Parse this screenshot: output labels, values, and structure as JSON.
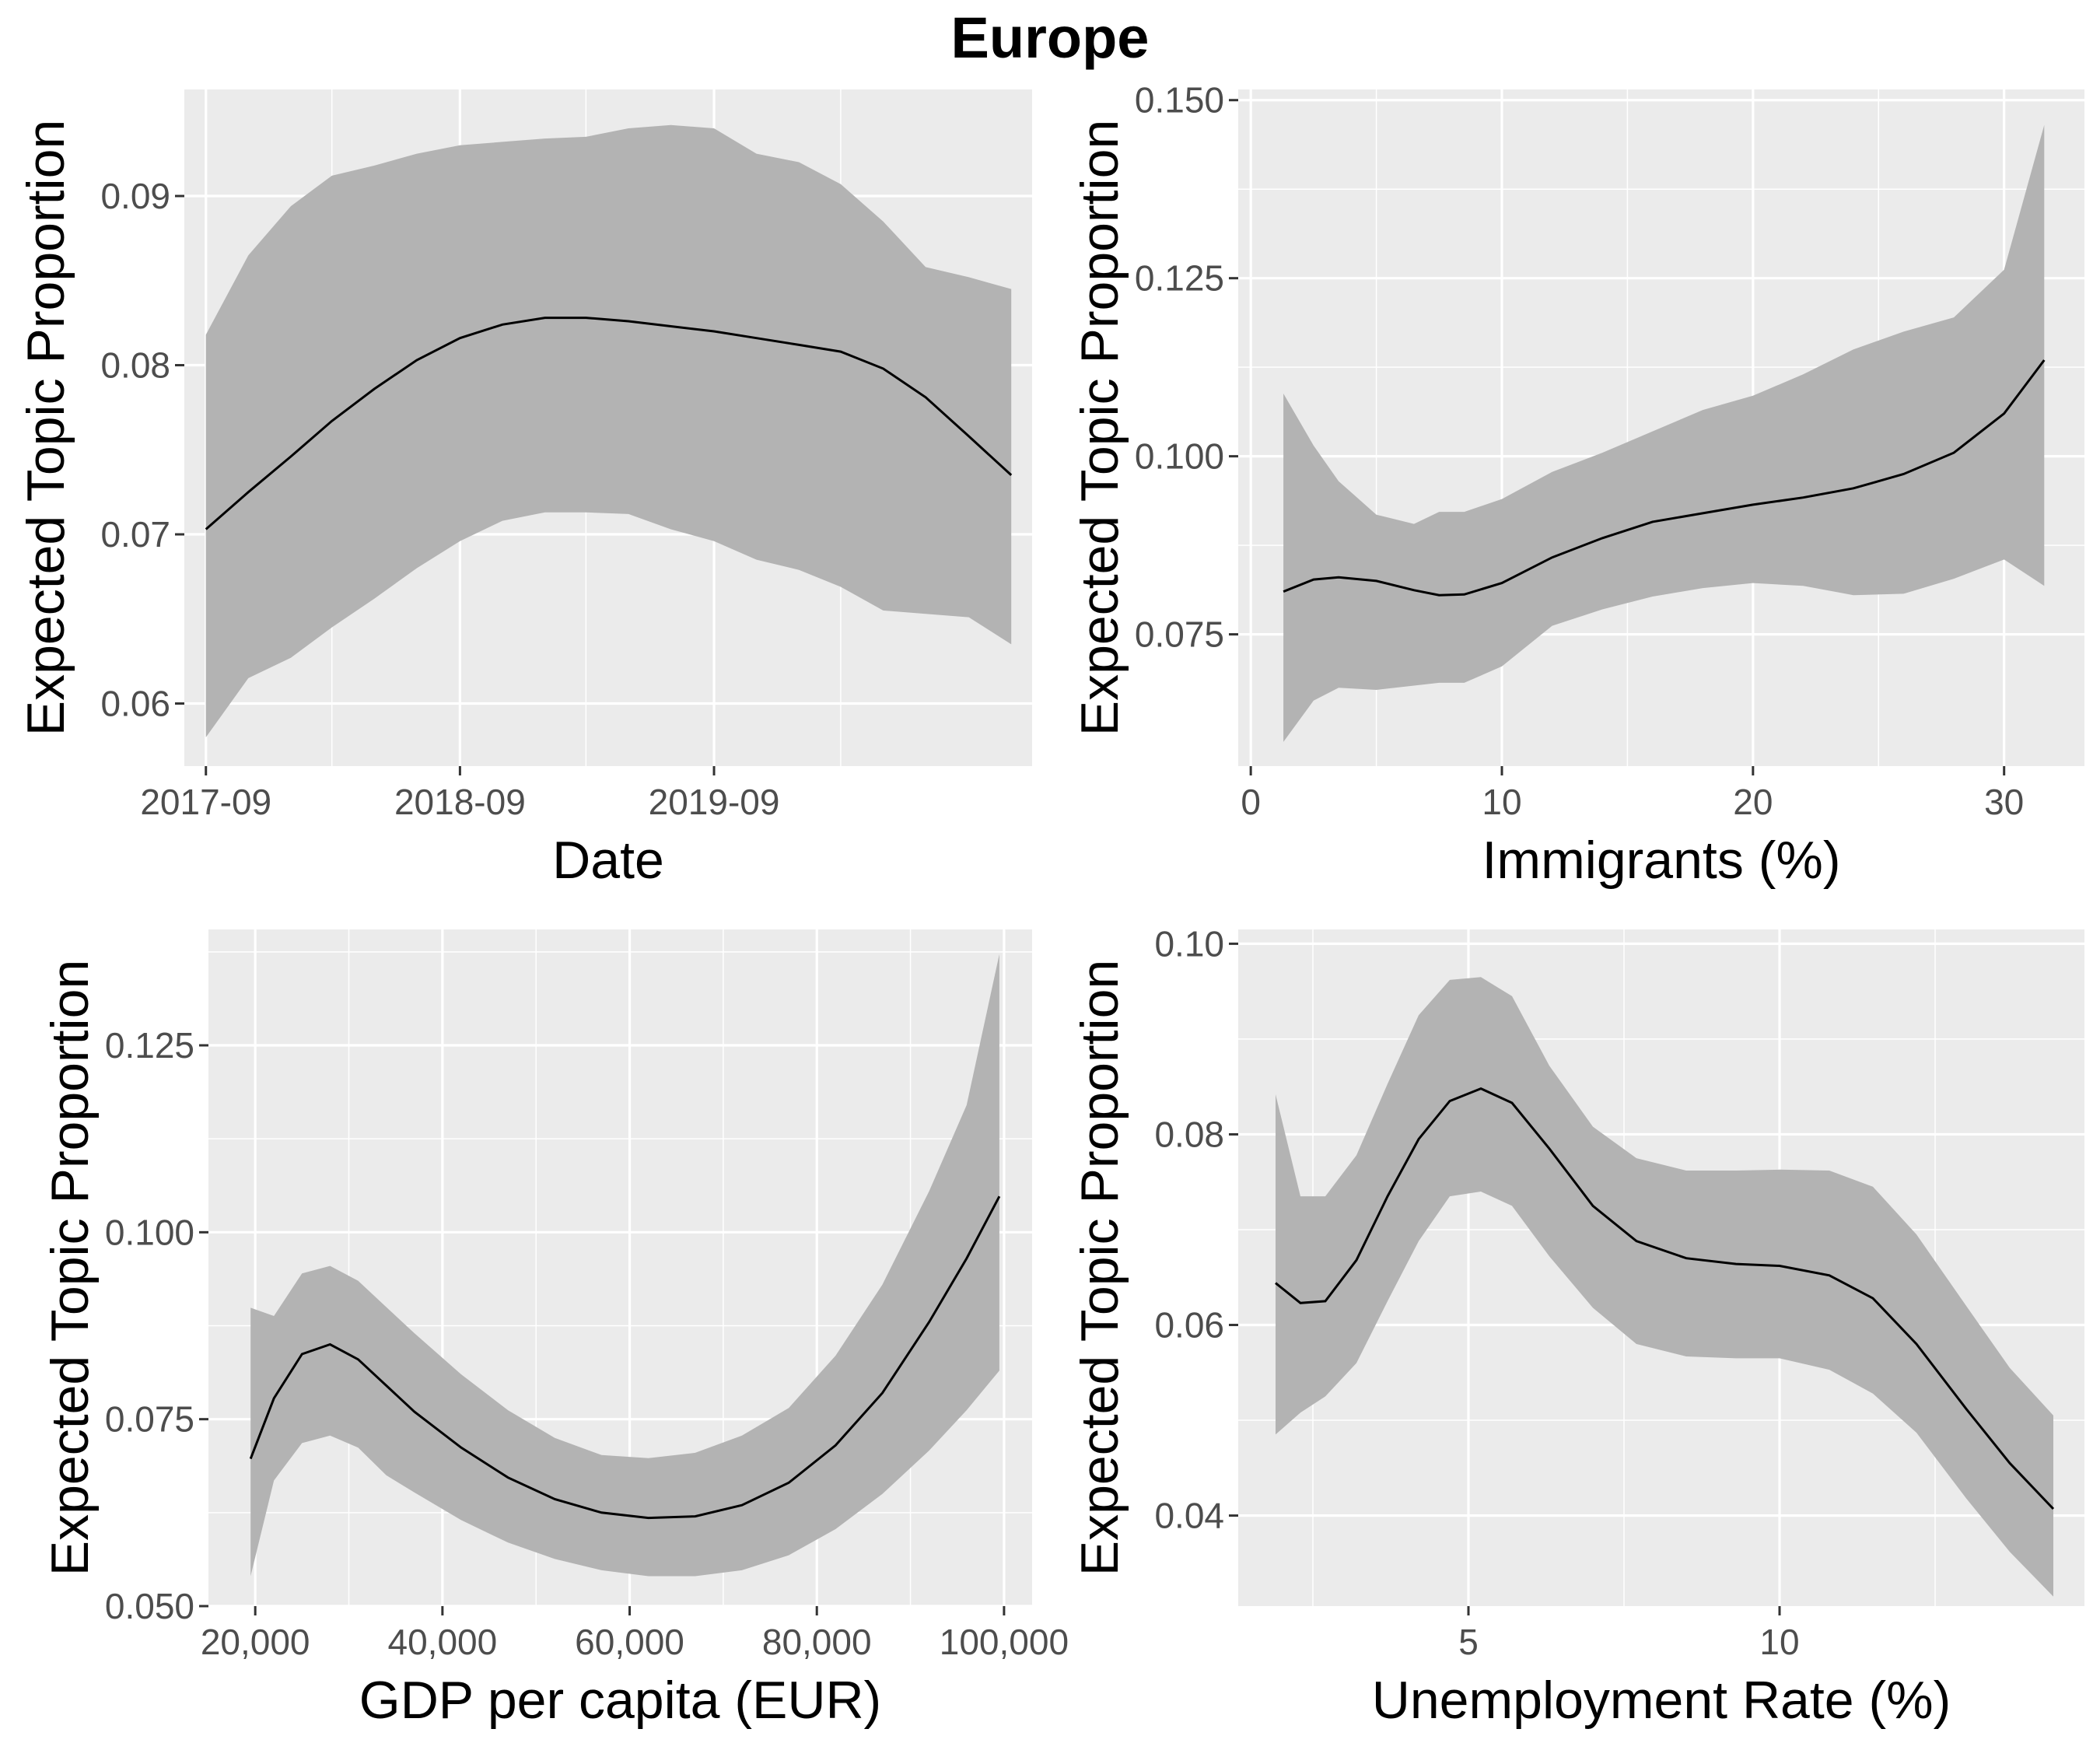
{
  "title": "Europe",
  "chart_data": [
    {
      "type": "line",
      "panel": "top-left",
      "xlabel": "Date",
      "ylabel": "Expected Topic Proportion",
      "x_scale": "date",
      "xlim": [
        "2017-08-01",
        "2020-12-01"
      ],
      "ylim": [
        0.0563,
        0.0963
      ],
      "x_ticks": [
        "2017-09-01",
        "2018-09-01",
        "2019-09-01"
      ],
      "x_tick_labels": [
        "2017-09",
        "2018-09",
        "2019-09"
      ],
      "x_minor_ticks": [
        "2018-03-01",
        "2019-03-01",
        "2020-03-01"
      ],
      "y_ticks": [
        0.06,
        0.07,
        0.08,
        0.09
      ],
      "y_tick_labels": [
        "0.06",
        "0.07",
        "0.08",
        "0.09"
      ],
      "grid": true,
      "series": [
        {
          "x": [
            "2017-09-01",
            "2017-11-01",
            "2018-01-01",
            "2018-03-01",
            "2018-05-01",
            "2018-07-01",
            "2018-09-01",
            "2018-11-01",
            "2019-01-01",
            "2019-03-01",
            "2019-05-01",
            "2019-07-01",
            "2019-09-01",
            "2019-11-01",
            "2020-01-01",
            "2020-03-01",
            "2020-05-01",
            "2020-07-01",
            "2020-09-01",
            "2020-11-01"
          ],
          "y": [
            0.0703,
            0.0725,
            0.0746,
            0.0767,
            0.0786,
            0.0803,
            0.0816,
            0.0824,
            0.0828,
            0.0828,
            0.0826,
            0.0823,
            0.082,
            0.0816,
            0.0812,
            0.0808,
            0.0798,
            0.0781,
            0.0758,
            0.0735
          ],
          "lower": [
            0.058,
            0.0615,
            0.0627,
            0.0645,
            0.0662,
            0.068,
            0.0696,
            0.0708,
            0.0713,
            0.0713,
            0.0712,
            0.0703,
            0.0696,
            0.0685,
            0.0679,
            0.0669,
            0.0655,
            0.0653,
            0.0651,
            0.0635
          ],
          "upper": [
            0.0818,
            0.0865,
            0.0894,
            0.0912,
            0.0918,
            0.0925,
            0.093,
            0.0932,
            0.0934,
            0.0935,
            0.094,
            0.0942,
            0.094,
            0.0925,
            0.092,
            0.0907,
            0.0885,
            0.0858,
            0.0852,
            0.0845
          ]
        }
      ]
    },
    {
      "type": "line",
      "panel": "top-right",
      "xlabel": "Immigrants (%)",
      "ylabel": "Expected Topic Proportion",
      "xlim": [
        -0.5,
        33.2
      ],
      "ylim": [
        0.0565,
        0.1515
      ],
      "x_ticks": [
        0,
        10,
        20,
        30
      ],
      "x_tick_labels": [
        "0",
        "10",
        "20",
        "30"
      ],
      "x_minor_ticks": [
        5,
        15,
        25
      ],
      "y_ticks": [
        0.075,
        0.1,
        0.125,
        0.15
      ],
      "y_tick_labels": [
        "0.075",
        "0.100",
        "0.125",
        "0.150"
      ],
      "y_minor_ticks": [
        0.0875,
        0.1125,
        0.1375
      ],
      "grid": true,
      "series": [
        {
          "x": [
            1.3,
            2.5,
            3.5,
            5,
            6.5,
            7.5,
            8.5,
            10,
            12,
            14,
            16,
            18,
            20,
            22,
            24,
            26,
            28,
            30,
            31.6
          ],
          "y": [
            0.081,
            0.0827,
            0.083,
            0.0825,
            0.0812,
            0.0805,
            0.0806,
            0.0822,
            0.0858,
            0.0885,
            0.0908,
            0.092,
            0.0932,
            0.0942,
            0.0955,
            0.0975,
            0.1005,
            0.106,
            0.1135
          ],
          "lower": [
            0.0599,
            0.0657,
            0.0675,
            0.0672,
            0.0678,
            0.0682,
            0.0682,
            0.0705,
            0.0762,
            0.0785,
            0.0803,
            0.0815,
            0.0822,
            0.0818,
            0.0805,
            0.0807,
            0.0828,
            0.0855,
            0.0818
          ],
          "upper": [
            0.1088,
            0.1015,
            0.0965,
            0.0918,
            0.0905,
            0.0922,
            0.0922,
            0.094,
            0.0978,
            0.1005,
            0.1035,
            0.1065,
            0.1085,
            0.1115,
            0.115,
            0.1175,
            0.1195,
            0.1262,
            0.1465
          ]
        }
      ]
    },
    {
      "type": "line",
      "panel": "bottom-left",
      "xlabel": "GDP per capita (EUR)",
      "ylabel": "Expected Topic Proportion",
      "xlim": [
        15000,
        103000
      ],
      "ylim": [
        0.05,
        0.1405
      ],
      "x_ticks": [
        20000,
        40000,
        60000,
        80000,
        100000
      ],
      "x_tick_labels": [
        "20,000",
        "40,000",
        "60,000",
        "80,000",
        "100,000"
      ],
      "x_minor_ticks": [
        30000,
        50000,
        70000,
        90000
      ],
      "y_ticks": [
        0.05,
        0.075,
        0.1,
        0.125
      ],
      "y_tick_labels": [
        "0.050",
        "0.075",
        "0.100",
        "0.125"
      ],
      "y_minor_ticks": [
        0.0625,
        0.0875,
        0.1125,
        0.1375
      ],
      "grid": true,
      "series": [
        {
          "x": [
            19500,
            22000,
            25000,
            28000,
            31000,
            34000,
            37000,
            42000,
            47000,
            52000,
            57000,
            62000,
            67000,
            72000,
            77000,
            82000,
            87000,
            92000,
            96000,
            99500
          ],
          "y": [
            0.0697,
            0.0778,
            0.0837,
            0.085,
            0.083,
            0.0795,
            0.076,
            0.0712,
            0.0672,
            0.0643,
            0.0625,
            0.0618,
            0.062,
            0.0635,
            0.0665,
            0.0715,
            0.0785,
            0.088,
            0.0965,
            0.1048
          ],
          "lower": [
            0.054,
            0.0668,
            0.0718,
            0.0728,
            0.0712,
            0.0675,
            0.0652,
            0.0615,
            0.0585,
            0.0563,
            0.0548,
            0.054,
            0.054,
            0.0548,
            0.0568,
            0.0603,
            0.065,
            0.0708,
            0.0762,
            0.0815
          ],
          "upper": [
            0.0899,
            0.0888,
            0.0945,
            0.0955,
            0.0935,
            0.09,
            0.0865,
            0.081,
            0.0762,
            0.0725,
            0.0702,
            0.0698,
            0.0705,
            0.0728,
            0.0765,
            0.0835,
            0.093,
            0.1055,
            0.117,
            0.1372
          ]
        }
      ]
    },
    {
      "type": "line",
      "panel": "bottom-right",
      "xlabel": "Unemployment Rate (%)",
      "ylabel": "Expected Topic Proportion",
      "xlim": [
        1.3,
        14.9
      ],
      "ylim": [
        0.0305,
        0.1015
      ],
      "x_ticks": [
        5,
        10
      ],
      "x_tick_labels": [
        "5",
        "10"
      ],
      "x_minor_ticks": [
        2.5,
        7.5,
        12.5
      ],
      "y_ticks": [
        0.04,
        0.06,
        0.08,
        0.1
      ],
      "y_tick_labels": [
        "0.04",
        "0.06",
        "0.08",
        "0.10"
      ],
      "y_minor_ticks": [
        0.05,
        0.07,
        0.09
      ],
      "grid": true,
      "series": [
        {
          "x": [
            1.9,
            2.3,
            2.7,
            3.2,
            3.7,
            4.2,
            4.7,
            5.2,
            5.7,
            6.3,
            7,
            7.7,
            8.5,
            9.3,
            10,
            10.8,
            11.5,
            12.2,
            13,
            13.7,
            14.4
          ],
          "y": [
            0.0644,
            0.0623,
            0.0625,
            0.0668,
            0.0735,
            0.0795,
            0.0835,
            0.0848,
            0.0833,
            0.0785,
            0.0725,
            0.0688,
            0.067,
            0.0664,
            0.0662,
            0.0652,
            0.0628,
            0.058,
            0.0512,
            0.0455,
            0.0407
          ],
          "lower": [
            0.0485,
            0.0508,
            0.0525,
            0.056,
            0.0625,
            0.0688,
            0.0735,
            0.074,
            0.0725,
            0.0672,
            0.0618,
            0.058,
            0.0567,
            0.0565,
            0.0565,
            0.0553,
            0.0528,
            0.0487,
            0.0418,
            0.0362,
            0.0315
          ],
          "upper": [
            0.0842,
            0.0735,
            0.0735,
            0.0778,
            0.0853,
            0.0925,
            0.0962,
            0.0965,
            0.0945,
            0.0872,
            0.0808,
            0.0775,
            0.0762,
            0.0762,
            0.0763,
            0.0762,
            0.0745,
            0.0695,
            0.062,
            0.0555,
            0.0505
          ]
        }
      ]
    }
  ]
}
